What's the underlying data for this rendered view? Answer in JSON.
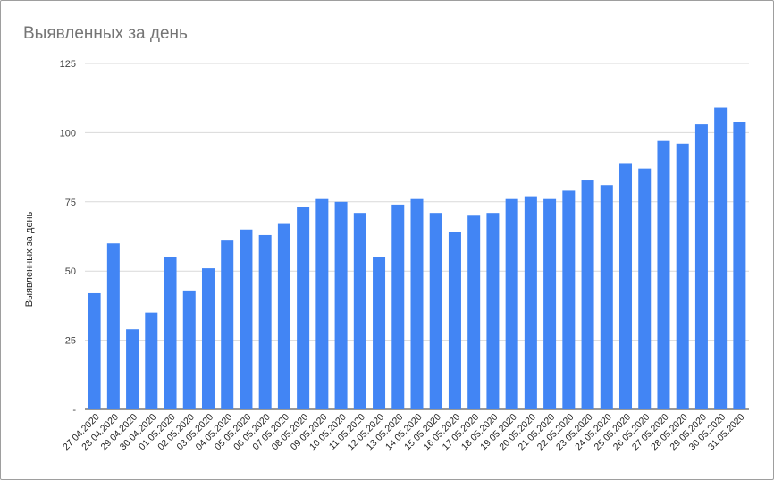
{
  "chart_data": {
    "type": "bar",
    "title": "Выявленных за день",
    "xlabel": "",
    "ylabel": "Выявленных за день",
    "ylim": [
      0,
      125
    ],
    "yticks": [
      "-",
      "25",
      "50",
      "75",
      "100",
      "125"
    ],
    "grid": true,
    "bar_color": "#4285f4",
    "categories": [
      "27.04.2020",
      "28.04.2020",
      "29.04.2020",
      "30.04.2020",
      "01.05.2020",
      "02.05.2020",
      "03.05.2020",
      "04.05.2020",
      "05.05.2020",
      "06.05.2020",
      "07.05.2020",
      "08.05.2020",
      "09.05.2020",
      "10.05.2020",
      "11.05.2020",
      "12.05.2020",
      "13.05.2020",
      "14.05.2020",
      "15.05.2020",
      "16.05.2020",
      "17.05.2020",
      "18.05.2020",
      "19.05.2020",
      "20.05.2020",
      "21.05.2020",
      "22.05.2020",
      "23.05.2020",
      "24.05.2020",
      "25.05.2020",
      "26.05.2020",
      "27.05.2020",
      "28.05.2020",
      "29.05.2020",
      "30.05.2020",
      "31.05.2020"
    ],
    "values": [
      42,
      60,
      29,
      35,
      55,
      43,
      51,
      61,
      65,
      63,
      67,
      73,
      76,
      75,
      71,
      55,
      74,
      76,
      71,
      64,
      70,
      71,
      76,
      77,
      76,
      79,
      83,
      81,
      89,
      87,
      97,
      96,
      103,
      109,
      104
    ]
  }
}
